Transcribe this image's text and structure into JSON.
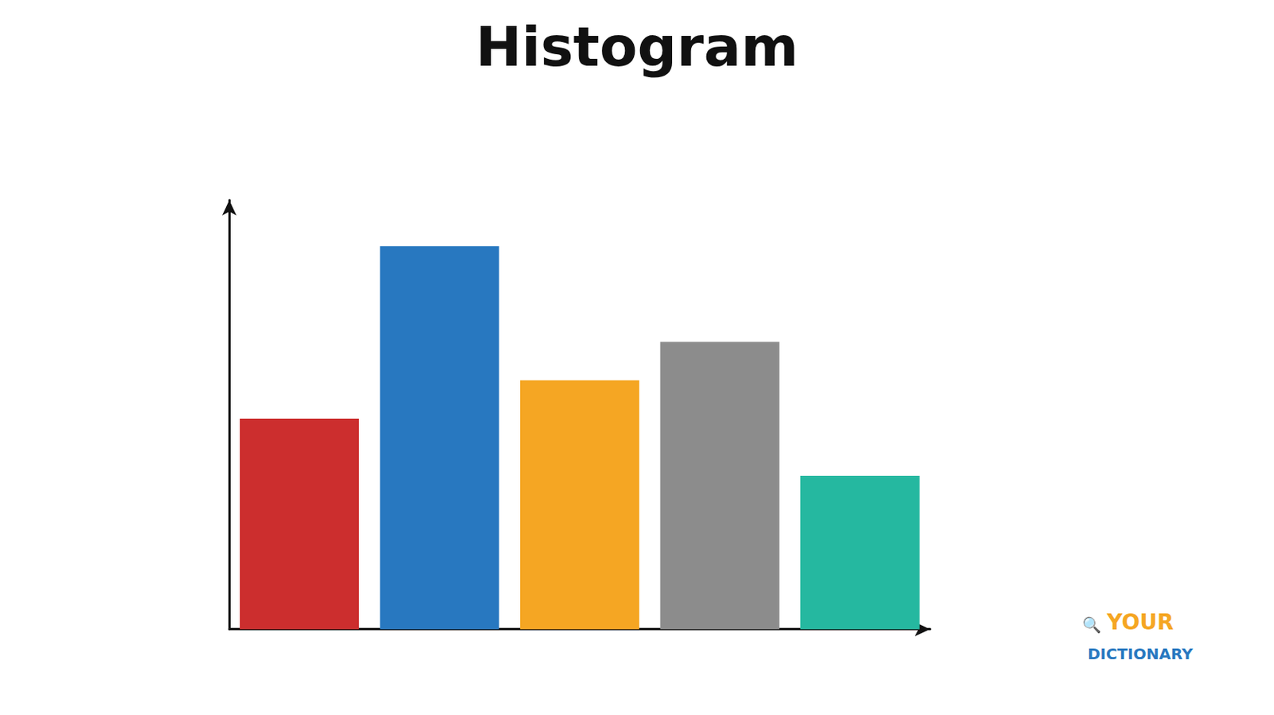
{
  "chart_data": {
    "type": "bar",
    "title": "Histogram",
    "categories": [
      null,
      null,
      null,
      null,
      null
    ],
    "values": [
      55,
      100,
      65,
      75,
      40
    ],
    "colors": [
      "#cc2e2e",
      "#2878c0",
      "#f5a623",
      "#8c8c8c",
      "#25b8a0"
    ],
    "ylim": [
      0,
      112
    ],
    "grid": false,
    "tick_labels": false,
    "annotations": [
      {
        "text": "YOUR",
        "color": "#f5a623"
      },
      {
        "text": "🔍"
      },
      {
        "text": "DICTIONARY",
        "color": "#2878c0"
      }
    ]
  }
}
